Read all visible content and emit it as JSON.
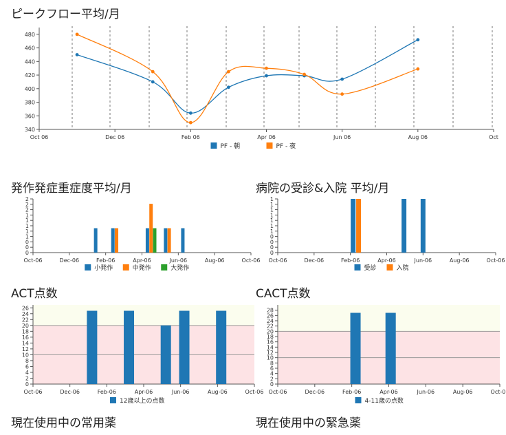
{
  "titles": {
    "peak_flow": "ピークフロー平均/月",
    "attacks": "発作発症重症度平均/月",
    "hospital": "病院の受診&入院 平均/月",
    "act": "ACT点数",
    "cact": "CACT点数",
    "regular_meds": "現在使用中の常用薬",
    "emergency_meds": "現在使用中の緊急薬"
  },
  "colors": {
    "blue": "#1f77b4",
    "orange": "#ff7f0e",
    "green": "#2ca02c",
    "zone_good": "#fbfdee",
    "zone_bad": "#fde3e5"
  },
  "chart_data": [
    {
      "id": "peak_flow",
      "type": "line",
      "curve": "smooth",
      "x_ticks": [
        "Oct 06",
        "Dec 06",
        "Feb 06",
        "Apr 06",
        "Jun 06",
        "Aug 06",
        "Oct"
      ],
      "x_range": [
        0,
        12
      ],
      "vertical_gridlines": true,
      "y_ticks": [
        340,
        360,
        380,
        400,
        420,
        440,
        460,
        480
      ],
      "ylim": [
        340,
        490
      ],
      "series": [
        {
          "name": "PF - 朝",
          "color": "blue",
          "x": [
            1,
            3,
            4,
            5,
            6,
            7,
            8,
            10
          ],
          "values": [
            450,
            410,
            364,
            402,
            419,
            419,
            414,
            472
          ]
        },
        {
          "name": "PF - 夜",
          "color": "orange",
          "x": [
            1,
            3,
            4,
            5,
            6,
            7,
            8,
            10
          ],
          "values": [
            480,
            425,
            350,
            425,
            430,
            421,
            392,
            429
          ]
        }
      ],
      "legend": "bottom-center"
    },
    {
      "id": "attacks",
      "type": "bar",
      "x_ticks": [
        "Oct-06",
        "Dec-06",
        "Feb-06",
        "Apr-06",
        "Jun-06",
        "Aug-06",
        "Oct-06"
      ],
      "x_range": [
        0,
        12
      ],
      "y_tick_labels": [
        "0",
        "0",
        "0",
        "1",
        "1",
        "1",
        "1",
        "1",
        "2",
        "2",
        "2"
      ],
      "ylim": [
        0,
        2.2
      ],
      "series": [
        {
          "name": "小発作",
          "color": "blue",
          "x": [
            3.45,
            4.4,
            6.3,
            7.3,
            8.25
          ],
          "values": [
            1,
            1,
            1,
            1,
            1
          ]
        },
        {
          "name": "中発作",
          "color": "orange",
          "x": [
            4.6,
            6.5,
            7.5
          ],
          "values": [
            1,
            2,
            1
          ]
        },
        {
          "name": "大発作",
          "color": "green",
          "x": [
            6.7
          ],
          "values": [
            1
          ]
        }
      ],
      "legend": "bottom-center"
    },
    {
      "id": "hospital",
      "type": "bar",
      "x_ticks": [
        "Oct-06",
        "Dec-06",
        "Feb-06",
        "Apr-06",
        "Jun-06",
        "Aug-06",
        "Oct-06"
      ],
      "x_range": [
        0,
        12
      ],
      "y_tick_labels": [
        "0",
        "0",
        "0",
        "0",
        "1",
        "1",
        "1",
        "1",
        "1",
        "1",
        "1"
      ],
      "ylim": [
        0,
        1
      ],
      "series": [
        {
          "name": "受診",
          "color": "blue",
          "x": [
            4.15,
            6.95,
            8.0
          ],
          "values": [
            1,
            1,
            1
          ]
        },
        {
          "name": "入院",
          "color": "orange",
          "x": [
            4.45
          ],
          "values": [
            1
          ]
        }
      ],
      "legend": "bottom-center"
    },
    {
      "id": "act",
      "type": "bar",
      "x_ticks": [
        "Oct-06",
        "Dec-06",
        "Feb-06",
        "Apr-06",
        "Jun-06",
        "Aug-06",
        "Oct-06"
      ],
      "x_range": [
        0,
        12
      ],
      "y_ticks": [
        0,
        2,
        4,
        6,
        8,
        10,
        12,
        14,
        16,
        18,
        20,
        22,
        24,
        26
      ],
      "ylim": [
        0,
        27
      ],
      "threshold_lines": [
        10,
        20
      ],
      "series": [
        {
          "name": "12歳以上の点数",
          "color": "blue",
          "x": [
            3.2,
            5.2,
            7.2,
            8.2,
            10.2
          ],
          "values": [
            25,
            25,
            20,
            25,
            25
          ]
        }
      ],
      "legend": "bottom-center"
    },
    {
      "id": "cact",
      "type": "bar",
      "x_ticks": [
        "Oct-06",
        "Dec-06",
        "Feb-06",
        "Apr-06",
        "Jun-06",
        "Aug-06",
        "Oct-06"
      ],
      "x_range": [
        0,
        12
      ],
      "y_ticks": [
        0,
        2,
        4,
        6,
        8,
        10,
        12,
        14,
        16,
        18,
        20,
        22,
        24,
        26,
        28
      ],
      "ylim": [
        0,
        30
      ],
      "threshold_lines": [
        10,
        20
      ],
      "series": [
        {
          "name": "4-11歳の点数",
          "color": "blue",
          "x": [
            4.2,
            6.1
          ],
          "values": [
            27,
            27
          ]
        }
      ],
      "legend": "bottom-center"
    }
  ]
}
